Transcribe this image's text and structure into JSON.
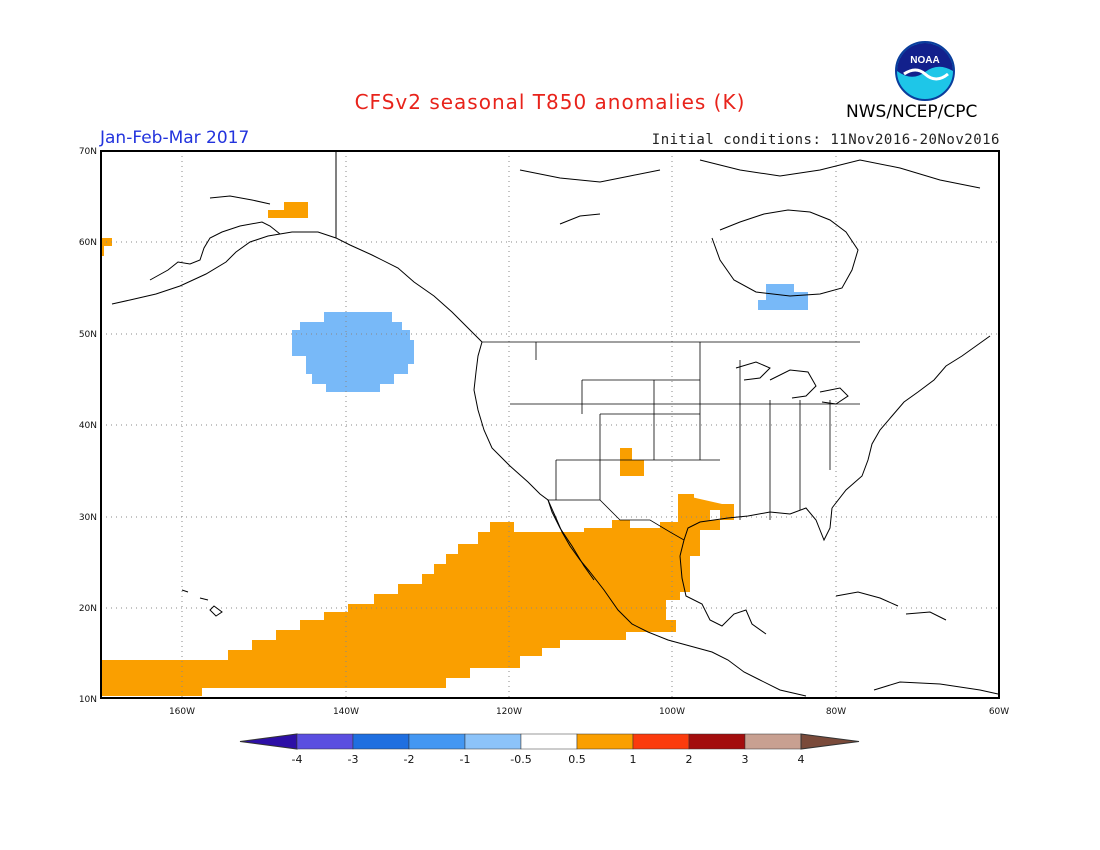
{
  "header": {
    "title": "CFSv2 seasonal T850 anomalies (K)",
    "org": "NWS/NCEP/CPC",
    "period": "Jan-Feb-Mar 2017",
    "initial_conditions": "Initial conditions: 11Nov2016-20Nov2016",
    "logo_text": "NOAA"
  },
  "map": {
    "lat_labels": [
      "70N",
      "60N",
      "50N",
      "40N",
      "30N",
      "20N",
      "10N"
    ],
    "lon_labels": [
      "160W",
      "140W",
      "120W",
      "100W",
      "80W",
      "60W"
    ],
    "colors": {
      "warm_anomaly": "#fa9f00",
      "cool_anomaly": "#78b9f8",
      "coastline": "#000000",
      "grid": "#888888"
    }
  },
  "colorbar": {
    "labels": [
      "-4",
      "-3",
      "-2",
      "-1",
      "-0.5",
      "0.5",
      "1",
      "2",
      "3",
      "4"
    ],
    "colors": [
      "#2d0fa6",
      "#5a4ee0",
      "#1f6fe0",
      "#4497f2",
      "#8cc3f9",
      "#ffffff",
      "#fa9f00",
      "#fb3b0d",
      "#a30d0d",
      "#c8a091",
      "#7a4a3a"
    ]
  }
}
